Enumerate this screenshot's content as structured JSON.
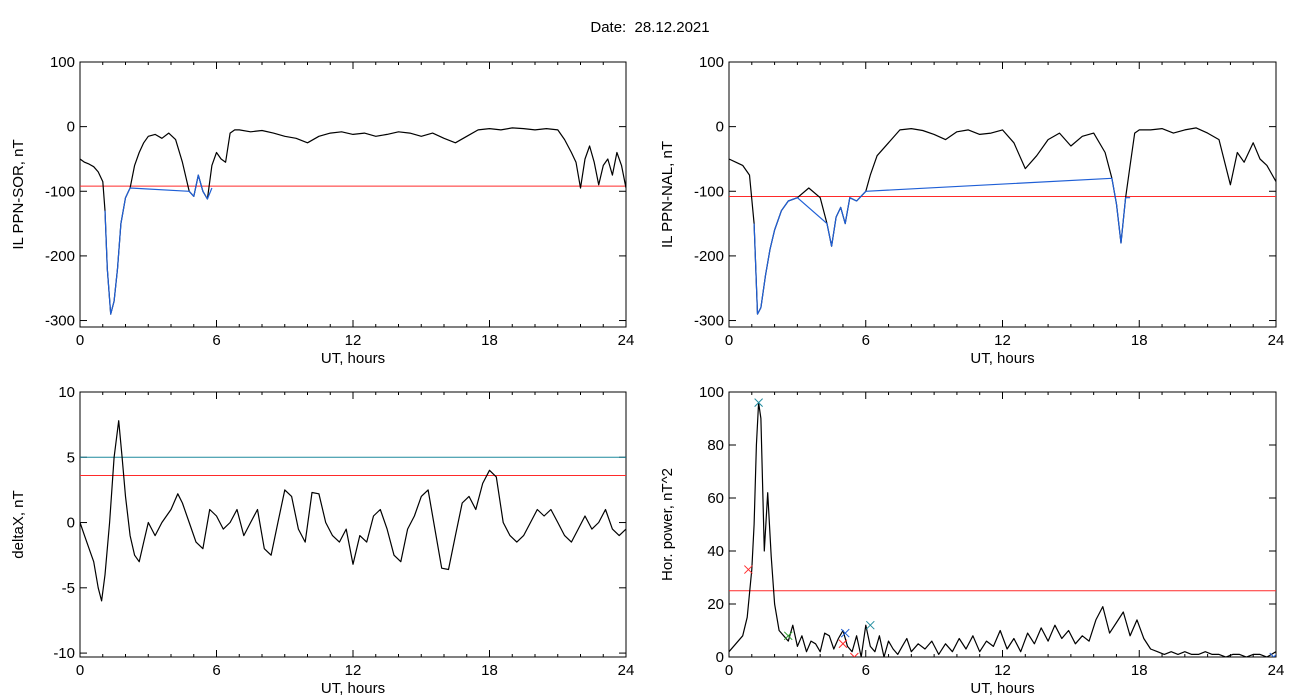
{
  "page": {
    "title": "Date:  28.12.2021"
  },
  "chart_data": [
    {
      "type": "line",
      "title": "",
      "xlabel": "UT, hours",
      "ylabel": "IL PPN-SOR, nT",
      "xlim": [
        0,
        24
      ],
      "ylim": [
        -310,
        100
      ],
      "xticks": [
        0,
        6,
        12,
        18,
        24
      ],
      "yticks": [
        -300,
        -200,
        -100,
        0,
        100
      ],
      "grid": false,
      "series": [
        {
          "color": "#000000",
          "x": [
            0,
            0.2,
            0.4,
            0.6,
            0.8,
            1.0,
            1.1,
            1.2,
            1.35,
            1.5,
            1.65,
            1.8,
            2.0,
            2.2,
            2.4,
            2.6,
            2.8,
            3.0,
            3.3,
            3.6,
            3.9,
            4.2,
            4.5,
            4.8,
            5.0,
            5.2,
            5.4,
            5.6,
            5.8,
            6.0,
            6.2,
            6.4,
            6.6,
            6.8,
            7.0,
            7.5,
            8,
            8.5,
            9,
            9.5,
            10,
            10.5,
            11,
            11.5,
            12,
            12.5,
            13,
            13.5,
            14,
            14.5,
            15,
            15.5,
            16,
            16.5,
            17,
            17.5,
            18,
            18.5,
            19,
            19.5,
            20,
            20.5,
            21,
            21.3,
            21.6,
            21.8,
            22.0,
            22.2,
            22.4,
            22.6,
            22.8,
            23.0,
            23.2,
            23.4,
            23.6,
            23.8,
            24.0
          ],
          "y": [
            -50,
            -55,
            -58,
            -62,
            -70,
            -85,
            -130,
            -220,
            -290,
            -270,
            -220,
            -150,
            -110,
            -95,
            -60,
            -40,
            -25,
            -15,
            -12,
            -18,
            -10,
            -20,
            -55,
            -100,
            -108,
            -75,
            -100,
            -112,
            -60,
            -40,
            -50,
            -55,
            -10,
            -5,
            -5,
            -8,
            -6,
            -10,
            -15,
            -18,
            -25,
            -15,
            -10,
            -8,
            -12,
            -10,
            -15,
            -12,
            -8,
            -10,
            -15,
            -10,
            -18,
            -25,
            -15,
            -5,
            -3,
            -5,
            -2,
            -3,
            -5,
            -3,
            -5,
            -20,
            -40,
            -55,
            -95,
            -50,
            -30,
            -55,
            -90,
            -60,
            -50,
            -75,
            -40,
            -60,
            -95
          ]
        },
        {
          "color": "#1f5fd6",
          "x": [
            1.1,
            1.2,
            1.35,
            1.5,
            1.65,
            1.8,
            2.0,
            2.2,
            4.8,
            5.0,
            5.2,
            5.4,
            5.6,
            5.8
          ],
          "y": [
            -130,
            -220,
            -290,
            -270,
            -220,
            -150,
            -110,
            -95,
            -100,
            -108,
            -75,
            -100,
            -112,
            -95
          ]
        }
      ],
      "hlines": [
        {
          "y": -92,
          "color": "#ff2a2a"
        }
      ]
    },
    {
      "type": "line",
      "title": "",
      "xlabel": "UT, hours",
      "ylabel": "IL PPN-NAL, nT",
      "xlim": [
        0,
        24
      ],
      "ylim": [
        -310,
        100
      ],
      "xticks": [
        0,
        6,
        12,
        18,
        24
      ],
      "yticks": [
        -300,
        -200,
        -100,
        0,
        100
      ],
      "grid": false,
      "series": [
        {
          "color": "#000000",
          "x": [
            0,
            0.3,
            0.6,
            0.9,
            1.1,
            1.25,
            1.4,
            1.6,
            1.8,
            2.0,
            2.3,
            2.6,
            3.0,
            3.5,
            4.0,
            4.3,
            4.5,
            4.7,
            4.9,
            5.1,
            5.3,
            5.6,
            6.0,
            6.2,
            6.5,
            7.0,
            7.5,
            8,
            8.5,
            9,
            9.5,
            10,
            10.5,
            11,
            11.5,
            12,
            12.5,
            13,
            13.5,
            14,
            14.5,
            15,
            15.5,
            16,
            16.5,
            16.8,
            17.0,
            17.2,
            17.4,
            17.6,
            17.8,
            18,
            18.5,
            19,
            19.5,
            20,
            20.5,
            21,
            21.5,
            22,
            22.3,
            22.6,
            23,
            23.3,
            23.6,
            24
          ],
          "y": [
            -50,
            -55,
            -60,
            -75,
            -150,
            -290,
            -280,
            -230,
            -190,
            -160,
            -130,
            -115,
            -110,
            -95,
            -110,
            -150,
            -185,
            -140,
            -125,
            -150,
            -110,
            -115,
            -100,
            -75,
            -45,
            -25,
            -5,
            -3,
            -6,
            -12,
            -20,
            -8,
            -5,
            -12,
            -10,
            -5,
            -25,
            -65,
            -45,
            -20,
            -10,
            -30,
            -15,
            -10,
            -40,
            -80,
            -120,
            -180,
            -110,
            -60,
            -10,
            -5,
            -5,
            -3,
            -10,
            -5,
            -2,
            -10,
            -20,
            -90,
            -40,
            -55,
            -25,
            -50,
            -60,
            -85
          ]
        },
        {
          "color": "#1f5fd6",
          "x": [
            1.1,
            1.25,
            1.4,
            1.6,
            1.8,
            2.0,
            2.3,
            2.6,
            3.0,
            4.3,
            4.5,
            4.7,
            4.9,
            5.1,
            5.3,
            5.6,
            6.0,
            16.8,
            17.0,
            17.2,
            17.4,
            17.6
          ],
          "y": [
            -150,
            -290,
            -280,
            -230,
            -190,
            -160,
            -130,
            -115,
            -110,
            -150,
            -185,
            -140,
            -125,
            -150,
            -110,
            -115,
            -100,
            -80,
            -120,
            -180,
            -110,
            -110
          ]
        }
      ],
      "hlines": [
        {
          "y": -108,
          "color": "#ff2a2a"
        }
      ]
    },
    {
      "type": "line",
      "title": "",
      "xlabel": "UT, hours",
      "ylabel": "deltaX, nT",
      "xlim": [
        0,
        24
      ],
      "ylim": [
        -10.3,
        10
      ],
      "xticks": [
        0,
        6,
        12,
        18,
        24
      ],
      "yticks": [
        -10,
        -5,
        0,
        5,
        10
      ],
      "grid": false,
      "series": [
        {
          "color": "#000000",
          "x": [
            0,
            0.2,
            0.4,
            0.6,
            0.8,
            0.95,
            1.1,
            1.3,
            1.5,
            1.7,
            1.85,
            2.0,
            2.2,
            2.4,
            2.6,
            2.8,
            3.0,
            3.3,
            3.6,
            4.0,
            4.3,
            4.5,
            4.8,
            5.1,
            5.4,
            5.7,
            6.0,
            6.3,
            6.6,
            6.9,
            7.2,
            7.5,
            7.8,
            8.1,
            8.4,
            8.7,
            9.0,
            9.3,
            9.6,
            9.9,
            10.2,
            10.5,
            10.8,
            11.1,
            11.4,
            11.7,
            12.0,
            12.3,
            12.6,
            12.9,
            13.2,
            13.5,
            13.8,
            14.1,
            14.4,
            14.7,
            15.0,
            15.3,
            15.6,
            15.9,
            16.2,
            16.5,
            16.8,
            17.1,
            17.4,
            17.7,
            18.0,
            18.3,
            18.6,
            18.9,
            19.2,
            19.5,
            19.8,
            20.1,
            20.4,
            20.7,
            21.0,
            21.3,
            21.6,
            21.9,
            22.2,
            22.5,
            22.8,
            23.1,
            23.4,
            23.7,
            24.0
          ],
          "y": [
            0,
            -1,
            -2,
            -3,
            -5,
            -6,
            -4,
            0,
            5,
            7.8,
            5,
            2,
            -1,
            -2.5,
            -3,
            -1.5,
            0,
            -1,
            0,
            1,
            2.2,
            1.5,
            0,
            -1.5,
            -2,
            1,
            0.5,
            -0.5,
            0,
            1,
            -1,
            0,
            1,
            -2,
            -2.5,
            0,
            2.5,
            2,
            -0.5,
            -1.5,
            2.3,
            2.2,
            0,
            -1,
            -1.5,
            -0.5,
            -3.2,
            -1,
            -1.5,
            0.5,
            1,
            -0.5,
            -2.5,
            -3,
            -0.5,
            0.5,
            2,
            2.5,
            -0.5,
            -3.5,
            -3.6,
            -1,
            1.5,
            2,
            1,
            3,
            4,
            3.5,
            0,
            -1,
            -1.5,
            -1,
            0,
            1,
            0.5,
            1,
            0,
            -1,
            -1.5,
            -0.5,
            0.5,
            -0.5,
            0,
            1,
            -0.5,
            -1,
            -0.5
          ]
        }
      ],
      "hlines": [
        {
          "y": 5,
          "color": "#1f8a9e"
        },
        {
          "y": 3.6,
          "color": "#ff2a2a"
        }
      ]
    },
    {
      "type": "line",
      "title": "",
      "xlabel": "UT, hours",
      "ylabel": "Hor. power, nT^2",
      "xlim": [
        0,
        24
      ],
      "ylim": [
        0,
        100
      ],
      "xticks": [
        0,
        6,
        12,
        18,
        24
      ],
      "yticks": [
        0,
        20,
        40,
        60,
        80,
        100
      ],
      "grid": false,
      "series": [
        {
          "color": "#000000",
          "x": [
            0,
            0.3,
            0.6,
            0.8,
            1.0,
            1.1,
            1.2,
            1.3,
            1.4,
            1.55,
            1.7,
            1.85,
            2.0,
            2.2,
            2.4,
            2.6,
            2.8,
            3.0,
            3.2,
            3.4,
            3.6,
            3.8,
            4.0,
            4.2,
            4.4,
            4.6,
            4.8,
            5.0,
            5.2,
            5.4,
            5.6,
            5.8,
            6.0,
            6.2,
            6.4,
            6.6,
            6.8,
            7.0,
            7.2,
            7.4,
            7.6,
            7.8,
            8.0,
            8.3,
            8.6,
            8.9,
            9.2,
            9.5,
            9.8,
            10.1,
            10.4,
            10.7,
            11.0,
            11.3,
            11.6,
            11.9,
            12.2,
            12.5,
            12.8,
            13.1,
            13.4,
            13.7,
            14.0,
            14.3,
            14.6,
            14.9,
            15.2,
            15.5,
            15.8,
            16.1,
            16.4,
            16.7,
            17.0,
            17.3,
            17.6,
            17.9,
            18.2,
            18.5,
            18.8,
            19.1,
            19.4,
            19.7,
            20.0,
            20.3,
            20.6,
            20.9,
            21.2,
            21.5,
            21.8,
            22.1,
            22.4,
            22.7,
            23.0,
            23.3,
            23.6,
            23.8,
            24.0
          ],
          "y": [
            2,
            5,
            8,
            15,
            33,
            50,
            80,
            96,
            90,
            40,
            62,
            38,
            20,
            10,
            8,
            6,
            12,
            4,
            8,
            2,
            6,
            5,
            2,
            9,
            8,
            3,
            7,
            10,
            4,
            2,
            8,
            0,
            12,
            4,
            2,
            8,
            0,
            6,
            3,
            1,
            4,
            7,
            2,
            5,
            3,
            6,
            1,
            5,
            2,
            7,
            3,
            8,
            2,
            6,
            4,
            10,
            3,
            7,
            2,
            9,
            5,
            11,
            6,
            12,
            7,
            10,
            5,
            8,
            6,
            14,
            19,
            9,
            13,
            17,
            8,
            14,
            7,
            3,
            2,
            1,
            2,
            1,
            2,
            1,
            1,
            2,
            1,
            1,
            0,
            1,
            1,
            0,
            1,
            1,
            0,
            1,
            2
          ]
        }
      ],
      "markers": [
        {
          "x": 1.3,
          "y": 96,
          "color": "#1f8a9e"
        },
        {
          "x": 0.85,
          "y": 33,
          "color": "#ff2a2a"
        },
        {
          "x": 2.6,
          "y": 8,
          "color": "#2e9e2e"
        },
        {
          "x": 5.1,
          "y": 9,
          "color": "#1f5fd6"
        },
        {
          "x": 6.2,
          "y": 12,
          "color": "#1f8a9e"
        },
        {
          "x": 5.0,
          "y": 5,
          "color": "#ff2a2a"
        },
        {
          "x": 5.5,
          "y": 0,
          "color": "#ff2a2a"
        },
        {
          "x": 23.9,
          "y": 0,
          "color": "#1f5fd6"
        }
      ],
      "hlines": [
        {
          "y": 25,
          "color": "#ff2a2a"
        }
      ]
    }
  ]
}
